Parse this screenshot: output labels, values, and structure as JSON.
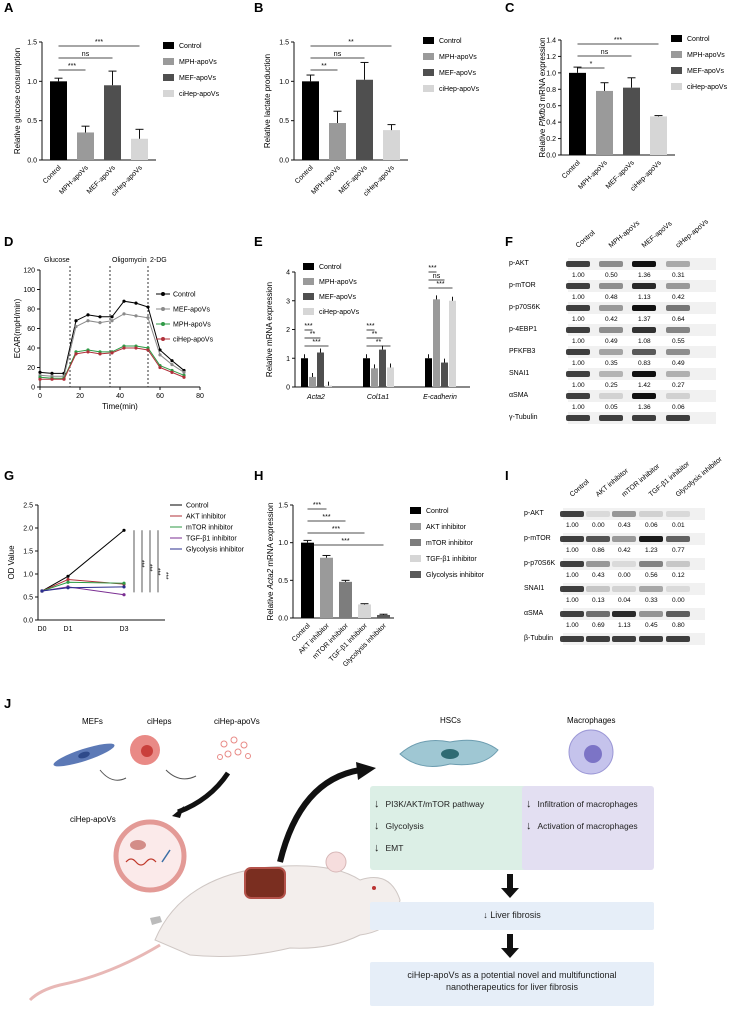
{
  "panels": {
    "A": {
      "label": "A",
      "ylabel": "Relative glucose consumption",
      "yticks": [
        "0.0",
        "0.5",
        "1.0",
        "1.5"
      ],
      "categories": [
        "Control",
        "MPH-apoVs",
        "MEF-apoVs",
        "ciHep-apoVs"
      ],
      "values": [
        1.0,
        0.35,
        0.95,
        0.27
      ],
      "errors": [
        0.04,
        0.08,
        0.18,
        0.12
      ],
      "legend": [
        "Control",
        "MPH-apoVs",
        "MEF-apoVs",
        "ciHep-apoVs"
      ],
      "sig": [
        "***",
        "ns",
        "***"
      ]
    },
    "B": {
      "label": "B",
      "ylabel": "Relative lactate production",
      "yticks": [
        "0.0",
        "0.5",
        "1.0",
        "1.5"
      ],
      "categories": [
        "Control",
        "MPH-apoVs",
        "MEF-apoVs",
        "ciHep-apoVs"
      ],
      "values": [
        1.0,
        0.47,
        1.02,
        0.38
      ],
      "errors": [
        0.08,
        0.15,
        0.22,
        0.07
      ],
      "legend": [
        "Control",
        "MPH-apoVs",
        "MEF-apoVs",
        "ciHep-apoVs"
      ],
      "sig": [
        "**",
        "ns",
        "**"
      ]
    },
    "C": {
      "label": "C",
      "ylabel_pre": "Relative ",
      "ylabel_gene": "Pfkfb3",
      "ylabel_post": " mRNA expression",
      "yticks": [
        "0.0",
        "0.2",
        "0.4",
        "0.6",
        "0.8",
        "1.0",
        "1.2",
        "1.4"
      ],
      "categories": [
        "Control",
        "MPH-apoVs",
        "MEF-apoVs",
        "ciHep-apoVs"
      ],
      "values": [
        1.0,
        0.78,
        0.82,
        0.47
      ],
      "errors": [
        0.07,
        0.1,
        0.12,
        0.01
      ],
      "legend": [
        "Control",
        "MPH-apoVs",
        "MEF-apoVs",
        "ciHep-apoVs"
      ],
      "sig": [
        "***",
        "ns",
        "*"
      ]
    },
    "D": {
      "label": "D",
      "ylabel": "ECAR(mpH/min)",
      "xlabel": "Time(min)",
      "xticks": [
        "0",
        "20",
        "40",
        "60",
        "80"
      ],
      "yticks": [
        "0",
        "20",
        "40",
        "60",
        "80",
        "100",
        "120"
      ],
      "markers": [
        "Glucose",
        "Oligomycin",
        "2-DG"
      ],
      "legend": [
        "Control",
        "MEF-apoVs",
        "MPH-apoVs",
        "ciHep-apoVs"
      ]
    },
    "E": {
      "label": "E",
      "ylabel": "Relative mRNA expression",
      "yticks": [
        "0",
        "1",
        "2",
        "3",
        "4"
      ],
      "genes": [
        "Acta2",
        "Col1a1",
        "E-cadherin"
      ],
      "legend": [
        "Control",
        "MPH-apoVs",
        "MEF-apoVs",
        "ciHep-apoVs"
      ],
      "sig": [
        "***",
        "**",
        "***",
        "***",
        "**",
        "**",
        "***",
        "ns",
        "***"
      ]
    },
    "F": {
      "label": "F",
      "columns": [
        "Control",
        "MPH-apoVs",
        "MEF-apoVs",
        "ciHep-apoVs"
      ],
      "rows": [
        {
          "name": "p-AKT",
          "q": [
            "1.00",
            "0.50",
            "1.36",
            "0.31"
          ]
        },
        {
          "name": "p-mTOR",
          "q": [
            "1.00",
            "0.48",
            "1.13",
            "0.42"
          ]
        },
        {
          "name": "p-p70S6K",
          "q": [
            "1.00",
            "0.42",
            "1.37",
            "0.64"
          ]
        },
        {
          "name": "p-4EBP1",
          "q": [
            "1.00",
            "0.49",
            "1.08",
            "0.55"
          ]
        },
        {
          "name": "PFKFB3",
          "q": [
            "1.00",
            "0.35",
            "0.83",
            "0.49"
          ]
        },
        {
          "name": "SNAI1",
          "q": [
            "1.00",
            "0.25",
            "1.42",
            "0.27"
          ]
        },
        {
          "name": "αSMA",
          "q": [
            "1.00",
            "0.05",
            "1.36",
            "0.06"
          ]
        },
        {
          "name": "γ-Tubulin",
          "q": []
        }
      ]
    },
    "G": {
      "label": "G",
      "ylabel": "OD Value",
      "xticks": [
        "D0",
        "D1",
        "D3"
      ],
      "yticks": [
        "0.0",
        "0.5",
        "1.0",
        "1.5",
        "2.0",
        "2.5"
      ],
      "legend": [
        "Control",
        "AKT inhibitor",
        "mTOR inhibitor",
        "TGF-β1 inhibitor",
        "Glycolysis inhibitor"
      ],
      "sig": [
        "***",
        "***",
        "***",
        "***"
      ]
    },
    "H": {
      "label": "H",
      "ylabel_pre": "Relative ",
      "ylabel_gene": "Acta2",
      "ylabel_post": " mRNA expression",
      "yticks": [
        "0.0",
        "0.5",
        "1.0",
        "1.5"
      ],
      "categories": [
        "Control",
        "AKT inhibitor",
        "mTOR inhibitor",
        "TGF-β1 inhibitor",
        "Glycolysis inhibitor"
      ],
      "values": [
        1.0,
        0.8,
        0.48,
        0.18,
        0.04
      ],
      "errors": [
        0.03,
        0.03,
        0.02,
        0.01,
        0.01
      ],
      "legend": [
        "Control",
        "AKT inhibitor",
        "mTOR inhibitor",
        "TGF-β1 inhibitor",
        "Glycolysis inhibitor"
      ],
      "sig": [
        "***",
        "***",
        "***",
        "***"
      ]
    },
    "I": {
      "label": "I",
      "columns": [
        "Control",
        "AKT inhibitor",
        "mTOR inhibitor",
        "TGF-β1 inhibitor",
        "Glycolysis inhibitor"
      ],
      "rows": [
        {
          "name": "p-AKT",
          "q": [
            "1.00",
            "0.00",
            "0.43",
            "0.06",
            "0.01"
          ]
        },
        {
          "name": "p-mTOR",
          "q": [
            "1.00",
            "0.86",
            "0.42",
            "1.23",
            "0.77"
          ]
        },
        {
          "name": "p-p70S6K",
          "q": [
            "1.00",
            "0.43",
            "0.00",
            "0.56",
            "0.12"
          ]
        },
        {
          "name": "SNAI1",
          "q": [
            "1.00",
            "0.13",
            "0.04",
            "0.33",
            "0.00"
          ]
        },
        {
          "name": "αSMA",
          "q": [
            "1.00",
            "0.69",
            "1.13",
            "0.45",
            "0.80"
          ]
        },
        {
          "name": "β-Tubulin",
          "q": []
        }
      ]
    },
    "J": {
      "label": "J",
      "mefs": "MEFs",
      "ciheps": "ciHeps",
      "ciHepApoVs": "ciHep-apoVs",
      "ciHepApoVs2": "ciHep-apoVs",
      "hscs": "HSCs",
      "macrophages": "Macrophages",
      "hsc_items": [
        "PI3K/AKT/mTOR  pathway",
        "Glycolysis",
        "EMT"
      ],
      "mac_items": [
        "Infiltration of macrophages",
        "Activation  of macrophages"
      ],
      "fibrosis": "Liver fibrosis",
      "conclusion": "ciHep-apoVs as a potential novel and  multifunctional nanotherapeutics  for liver fibrosis"
    }
  },
  "chart_data": [
    {
      "type": "bar",
      "panel": "A",
      "categories": [
        "Control",
        "MPH-apoVs",
        "MEF-apoVs",
        "ciHep-apoVs"
      ],
      "values": [
        1.0,
        0.35,
        0.95,
        0.27
      ],
      "ylabel": "Relative glucose consumption",
      "ylim": [
        0,
        1.5
      ]
    },
    {
      "type": "bar",
      "panel": "B",
      "categories": [
        "Control",
        "MPH-apoVs",
        "MEF-apoVs",
        "ciHep-apoVs"
      ],
      "values": [
        1.0,
        0.47,
        1.02,
        0.38
      ],
      "ylabel": "Relative lactate production",
      "ylim": [
        0,
        1.5
      ]
    },
    {
      "type": "bar",
      "panel": "C",
      "categories": [
        "Control",
        "MPH-apoVs",
        "MEF-apoVs",
        "ciHep-apoVs"
      ],
      "values": [
        1.0,
        0.78,
        0.82,
        0.47
      ],
      "ylabel": "Relative Pfkfb3 mRNA expression",
      "ylim": [
        0,
        1.4
      ]
    },
    {
      "type": "line",
      "panel": "D",
      "xlabel": "Time(min)",
      "ylabel": "ECAR(mpH/min)",
      "xlim": [
        0,
        80
      ],
      "ylim": [
        0,
        120
      ],
      "x": [
        0,
        6,
        12,
        18,
        24,
        30,
        36,
        42,
        48,
        54,
        60,
        66,
        72
      ],
      "series": [
        {
          "name": "Control",
          "values": [
            15,
            14,
            14,
            68,
            74,
            72,
            72,
            88,
            86,
            82,
            38,
            27,
            17
          ]
        },
        {
          "name": "MEF-apoVs",
          "values": [
            12,
            11,
            11,
            62,
            68,
            66,
            68,
            75,
            73,
            71,
            33,
            23,
            15
          ]
        },
        {
          "name": "MPH-apoVs",
          "values": [
            10,
            9,
            9,
            36,
            38,
            36,
            36,
            42,
            42,
            40,
            22,
            17,
            12
          ]
        },
        {
          "name": "ciHep-apoVs",
          "values": [
            8,
            8,
            8,
            34,
            36,
            34,
            35,
            40,
            40,
            38,
            20,
            15,
            10
          ]
        }
      ]
    },
    {
      "type": "bar",
      "panel": "E",
      "categories": [
        "Acta2",
        "Col1a1",
        "E-cadherin"
      ],
      "series": [
        {
          "name": "Control",
          "values": [
            1.0,
            1.0,
            1.0
          ]
        },
        {
          "name": "MPH-apoVs",
          "values": [
            0.35,
            0.65,
            3.05
          ]
        },
        {
          "name": "MEF-apoVs",
          "values": [
            1.2,
            1.3,
            0.85
          ]
        },
        {
          "name": "ciHep-apoVs",
          "values": [
            0.05,
            0.68,
            3.0
          ]
        }
      ],
      "ylabel": "Relative mRNA expression",
      "ylim": [
        0,
        4
      ]
    },
    {
      "type": "line",
      "panel": "G",
      "xlabel": "",
      "ylabel": "OD Value",
      "categories": [
        "D0",
        "D1",
        "D3"
      ],
      "ylim": [
        0,
        2.5
      ],
      "series": [
        {
          "name": "Control",
          "values": [
            0.63,
            0.95,
            1.95
          ]
        },
        {
          "name": "AKT inhibitor",
          "values": [
            0.63,
            0.88,
            0.78
          ]
        },
        {
          "name": "mTOR inhibitor",
          "values": [
            0.63,
            0.82,
            0.8
          ]
        },
        {
          "name": "TGF-β1 inhibitor",
          "values": [
            0.63,
            0.72,
            0.55
          ]
        },
        {
          "name": "Glycolysis inhibitor",
          "values": [
            0.63,
            0.7,
            0.72
          ]
        }
      ]
    },
    {
      "type": "bar",
      "panel": "H",
      "categories": [
        "Control",
        "AKT inhibitor",
        "mTOR inhibitor",
        "TGF-β1 inhibitor",
        "Glycolysis inhibitor"
      ],
      "values": [
        1.0,
        0.8,
        0.48,
        0.18,
        0.04
      ],
      "ylabel": "Relative Acta2 mRNA expression",
      "ylim": [
        0,
        1.5
      ]
    }
  ],
  "colors": {
    "c0": "#000000",
    "c1": "#9a9a9a",
    "c2": "#4f4f4f",
    "c3": "#d6d6d6",
    "gred": "#b0303a",
    "ggreen": "#2f9a46",
    "gpurple": "#7b2f93",
    "gblue": "#2b2f8f",
    "hscbox": "#dcefe6",
    "macbox": "#e3dff2",
    "bluebox": "#e6eef8"
  }
}
